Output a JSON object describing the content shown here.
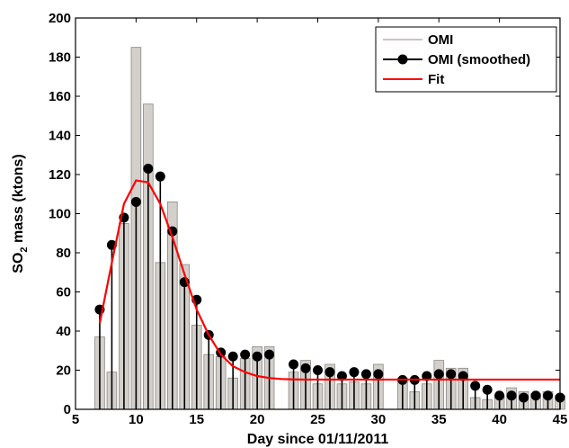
{
  "chart_data": {
    "type": "bar",
    "xlabel": "Day since 01/11/2011",
    "ylabel_main": "SO",
    "ylabel_sub": "2",
    "ylabel_rest": " mass (ktons)",
    "xlim": [
      5,
      45
    ],
    "ylim": [
      0,
      200
    ],
    "xticks": [
      5,
      10,
      15,
      20,
      25,
      30,
      35,
      40,
      45
    ],
    "yticks": [
      0,
      20,
      40,
      60,
      80,
      100,
      120,
      140,
      160,
      180,
      200
    ],
    "grid": false,
    "legend_position": "top-right",
    "series": [
      {
        "name": "OMI",
        "kind": "bar",
        "color": "#d3d0cb",
        "edge_color": "#8c8884",
        "x": [
          7,
          8,
          9,
          10,
          11,
          12,
          13,
          14,
          15,
          16,
          17,
          18,
          19,
          20,
          21,
          23,
          24,
          25,
          26,
          27,
          28,
          29,
          30,
          32,
          33,
          34,
          35,
          36,
          37,
          38,
          39,
          40,
          41,
          42,
          43,
          44,
          45
        ],
        "values": [
          37,
          19,
          95,
          185,
          156,
          75,
          106,
          74,
          43,
          28,
          27,
          16,
          26,
          32,
          32,
          19,
          25,
          13,
          23,
          13,
          14,
          13,
          23,
          16,
          9,
          13,
          25,
          21,
          21,
          6,
          5,
          7,
          11,
          9,
          8,
          9,
          7
        ]
      },
      {
        "name": "OMI (smoothed)",
        "kind": "stem",
        "color": "#000000",
        "x": [
          7,
          8,
          9,
          10,
          11,
          12,
          13,
          14,
          15,
          16,
          17,
          18,
          19,
          20,
          21,
          23,
          24,
          25,
          26,
          27,
          28,
          29,
          30,
          32,
          33,
          34,
          35,
          36,
          37,
          38,
          39,
          40,
          41,
          42,
          43,
          44,
          45
        ],
        "values": [
          51,
          84,
          98,
          106,
          123,
          119,
          91,
          65,
          56,
          38,
          29,
          27,
          28,
          27,
          28,
          23,
          21,
          20,
          19,
          17,
          19,
          18,
          18,
          15,
          15,
          17,
          18,
          18,
          17,
          12,
          10,
          7,
          7,
          6,
          7,
          7,
          6
        ]
      },
      {
        "name": "Fit",
        "kind": "line",
        "color": "#ff0000",
        "x": [
          7,
          8,
          9,
          10,
          11,
          12,
          13,
          14,
          15,
          16,
          17,
          18,
          19,
          20,
          21,
          22,
          23,
          24,
          25,
          26,
          27,
          28,
          29,
          30,
          32,
          35,
          40,
          45
        ],
        "values": [
          44,
          75,
          105,
          117,
          116,
          105,
          88,
          69,
          51,
          38,
          28,
          22,
          19,
          17,
          16,
          15.5,
          15.3,
          15.2,
          15.2,
          15.2,
          15.2,
          15.2,
          15.2,
          15.2,
          15.2,
          15.2,
          15.2,
          15.2
        ]
      }
    ]
  }
}
